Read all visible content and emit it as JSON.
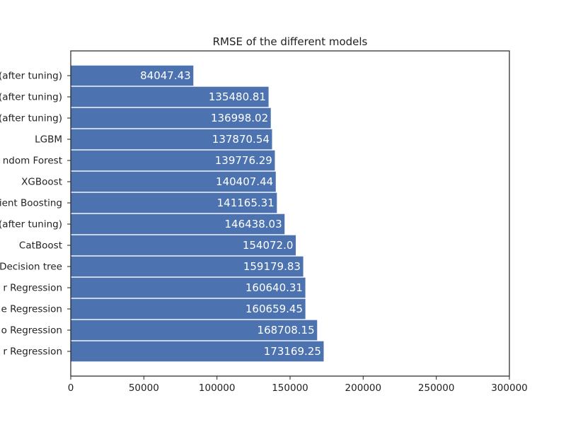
{
  "chart_data": {
    "type": "bar",
    "orientation": "horizontal",
    "title": "RMSE of the different models",
    "xlabel": "",
    "ylabel": "",
    "xlim": [
      0,
      300000
    ],
    "xticks": [
      0,
      50000,
      100000,
      150000,
      200000,
      250000,
      300000
    ],
    "xtick_labels": [
      "0",
      "50000",
      "100000",
      "150000",
      "200000",
      "250000",
      "300000"
    ],
    "grid": false,
    "bar_color": "#4C72B0",
    "label_color": "#ffffff",
    "categories": [
      "(after tuning)",
      "(after tuning)",
      "(after tuning)",
      "LGBM",
      "ndom Forest",
      "XGBoost",
      "ient Boosting",
      "(after tuning)",
      "CatBoost",
      "Decision tree",
      "r Regression",
      "e Regression",
      "o Regression",
      "r Regression"
    ],
    "values": [
      84047.43,
      135480.81,
      136998.02,
      137870.54,
      139776.29,
      140407.44,
      141165.31,
      146438.03,
      154072.0,
      159179.83,
      160640.31,
      160659.45,
      168708.15,
      173169.25
    ],
    "value_labels": [
      "84047.43",
      "135480.81",
      "136998.02",
      "137870.54",
      "139776.29",
      "140407.44",
      "141165.31",
      "146438.03",
      "154072.0",
      "159179.83",
      "160640.31",
      "160659.45",
      "168708.15",
      "173169.25"
    ]
  }
}
